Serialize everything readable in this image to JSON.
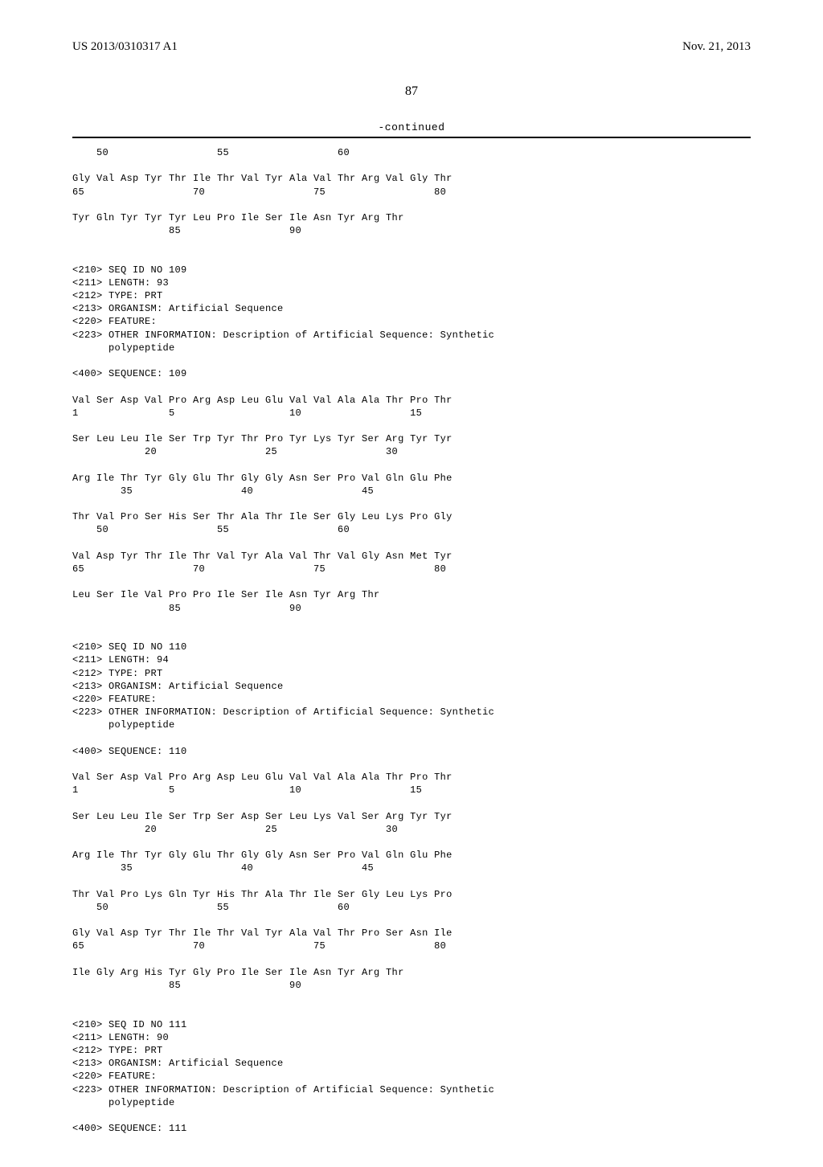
{
  "header": {
    "pub_number": "US 2013/0310317 A1",
    "pub_date": "Nov. 21, 2013"
  },
  "page_number": "87",
  "continued_label": "-continued",
  "sequence_text": "    50                  55                  60\n\nGly Val Asp Tyr Thr Ile Thr Val Tyr Ala Val Thr Arg Val Gly Thr\n65                  70                  75                  80\n\nTyr Gln Tyr Tyr Tyr Leu Pro Ile Ser Ile Asn Tyr Arg Thr\n                85                  90\n\n\n<210> SEQ ID NO 109\n<211> LENGTH: 93\n<212> TYPE: PRT\n<213> ORGANISM: Artificial Sequence\n<220> FEATURE:\n<223> OTHER INFORMATION: Description of Artificial Sequence: Synthetic\n      polypeptide\n\n<400> SEQUENCE: 109\n\nVal Ser Asp Val Pro Arg Asp Leu Glu Val Val Ala Ala Thr Pro Thr\n1               5                   10                  15\n\nSer Leu Leu Ile Ser Trp Tyr Thr Pro Tyr Lys Tyr Ser Arg Tyr Tyr\n            20                  25                  30\n\nArg Ile Thr Tyr Gly Glu Thr Gly Gly Asn Ser Pro Val Gln Glu Phe\n        35                  40                  45\n\nThr Val Pro Ser His Ser Thr Ala Thr Ile Ser Gly Leu Lys Pro Gly\n    50                  55                  60\n\nVal Asp Tyr Thr Ile Thr Val Tyr Ala Val Thr Val Gly Asn Met Tyr\n65                  70                  75                  80\n\nLeu Ser Ile Val Pro Pro Ile Ser Ile Asn Tyr Arg Thr\n                85                  90\n\n\n<210> SEQ ID NO 110\n<211> LENGTH: 94\n<212> TYPE: PRT\n<213> ORGANISM: Artificial Sequence\n<220> FEATURE:\n<223> OTHER INFORMATION: Description of Artificial Sequence: Synthetic\n      polypeptide\n\n<400> SEQUENCE: 110\n\nVal Ser Asp Val Pro Arg Asp Leu Glu Val Val Ala Ala Thr Pro Thr\n1               5                   10                  15\n\nSer Leu Leu Ile Ser Trp Ser Asp Ser Leu Lys Val Ser Arg Tyr Tyr\n            20                  25                  30\n\nArg Ile Thr Tyr Gly Glu Thr Gly Gly Asn Ser Pro Val Gln Glu Phe\n        35                  40                  45\n\nThr Val Pro Lys Gln Tyr His Thr Ala Thr Ile Ser Gly Leu Lys Pro\n    50                  55                  60\n\nGly Val Asp Tyr Thr Ile Thr Val Tyr Ala Val Thr Pro Ser Asn Ile\n65                  70                  75                  80\n\nIle Gly Arg His Tyr Gly Pro Ile Ser Ile Asn Tyr Arg Thr\n                85                  90\n\n\n<210> SEQ ID NO 111\n<211> LENGTH: 90\n<212> TYPE: PRT\n<213> ORGANISM: Artificial Sequence\n<220> FEATURE:\n<223> OTHER INFORMATION: Description of Artificial Sequence: Synthetic\n      polypeptide\n\n<400> SEQUENCE: 111"
}
